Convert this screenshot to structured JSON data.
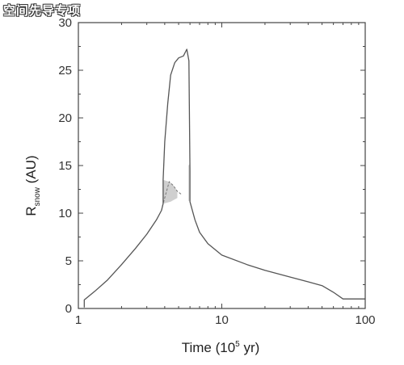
{
  "watermark": "空间先导专项",
  "chart_data": {
    "type": "line",
    "xlabel": "Time (10",
    "xlabel_sup": "5",
    "xlabel_end": " yr)",
    "ylabel": "R",
    "ylabel_sub": "snow",
    "ylabel_end": " (AU)",
    "xscale": "log",
    "xlim": [
      1,
      100
    ],
    "ylim": [
      0,
      30
    ],
    "x_ticks": [
      1,
      10,
      100
    ],
    "y_ticks": [
      0,
      5,
      10,
      15,
      20,
      25,
      30
    ],
    "grid": false,
    "series": [
      {
        "color": "#555555",
        "points": [
          [
            1.1,
            0.1
          ],
          [
            1.1,
            0.9
          ],
          [
            1.3,
            1.8
          ],
          [
            1.6,
            3.0
          ],
          [
            2.0,
            4.6
          ],
          [
            2.5,
            6.3
          ],
          [
            3.0,
            7.8
          ],
          [
            3.5,
            9.3
          ],
          [
            3.8,
            10.3
          ],
          [
            3.9,
            11.0
          ],
          [
            3.9,
            13.5
          ],
          [
            4.0,
            17.5
          ],
          [
            4.2,
            21.5
          ],
          [
            4.4,
            24.5
          ],
          [
            4.7,
            25.8
          ],
          [
            5.0,
            26.3
          ],
          [
            5.4,
            26.5
          ],
          [
            5.7,
            27.2
          ],
          [
            5.9,
            26.0
          ],
          [
            6.0,
            14.5
          ],
          [
            6.0,
            11.2
          ],
          [
            6.5,
            9.3
          ],
          [
            7.0,
            8.0
          ],
          [
            8.0,
            6.8
          ],
          [
            10.0,
            5.6
          ],
          [
            15.0,
            4.6
          ],
          [
            20.0,
            4.0
          ],
          [
            30.0,
            3.3
          ],
          [
            40.0,
            2.8
          ],
          [
            50.0,
            2.4
          ],
          [
            60.0,
            1.7
          ],
          [
            70.0,
            1.0
          ],
          [
            100.0,
            1.0
          ]
        ]
      }
    ],
    "shaded_regions": [
      {
        "color": "#cfcfcf",
        "points": [
          [
            3.9,
            11.0
          ],
          [
            3.9,
            13.5
          ],
          [
            4.3,
            13.3
          ],
          [
            4.6,
            12.9
          ],
          [
            4.9,
            12.3
          ],
          [
            4.9,
            11.6
          ],
          [
            4.4,
            11.2
          ]
        ]
      },
      {
        "color": "#cfcfcf",
        "points": [
          [
            5.85,
            11.3
          ],
          [
            5.85,
            15.0
          ],
          [
            6.0,
            15.2
          ],
          [
            6.0,
            11.3
          ]
        ]
      }
    ],
    "dashed_segments": [
      {
        "color": "#777777",
        "points": [
          [
            3.8,
            10.3
          ],
          [
            3.9,
            11.0
          ],
          [
            4.3,
            13.3
          ],
          [
            4.6,
            12.9
          ],
          [
            4.9,
            12.3
          ],
          [
            5.2,
            12.0
          ]
        ]
      }
    ]
  }
}
